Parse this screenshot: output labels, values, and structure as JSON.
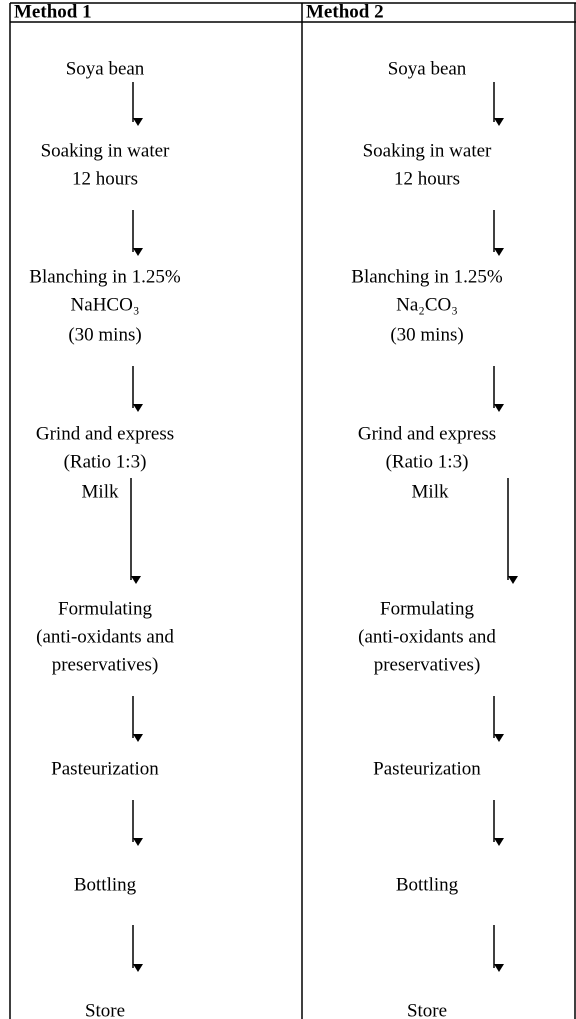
{
  "columns": [
    {
      "header": "Method 1",
      "steps": [
        {
          "lines": [
            "Soya bean"
          ]
        },
        {
          "lines": [
            "Soaking in water",
            "12 hours"
          ]
        },
        {
          "lines": [
            "Blanching in 1.25%",
            "NaHCO₃",
            "(30 mins)"
          ]
        },
        {
          "lines": [
            "Grind and express",
            "(Ratio 1:3)"
          ]
        },
        {
          "lines": [
            "Milk"
          ]
        },
        {
          "lines": [
            "Formulating",
            "(anti-oxidants and",
            "preservatives)"
          ]
        },
        {
          "lines": [
            "Pasteurization"
          ]
        },
        {
          "lines": [
            "Bottling"
          ]
        },
        {
          "lines": [
            "Store"
          ]
        }
      ]
    },
    {
      "header": "Method 2",
      "steps": [
        {
          "lines": [
            "Soya bean"
          ]
        },
        {
          "lines": [
            "Soaking in water",
            "12 hours"
          ]
        },
        {
          "lines": [
            "Blanching in 1.25%",
            "Na₂CO₃",
            "(30 mins)"
          ]
        },
        {
          "lines": [
            "Grind and express",
            "(Ratio 1:3)"
          ]
        },
        {
          "lines": [
            "Milk"
          ]
        },
        {
          "lines": [
            "Formulating",
            "(anti-oxidants and",
            "preservatives)"
          ]
        },
        {
          "lines": [
            "Pasteurization"
          ]
        },
        {
          "lines": [
            "Bottling"
          ]
        },
        {
          "lines": [
            "Store"
          ]
        }
      ]
    }
  ]
}
